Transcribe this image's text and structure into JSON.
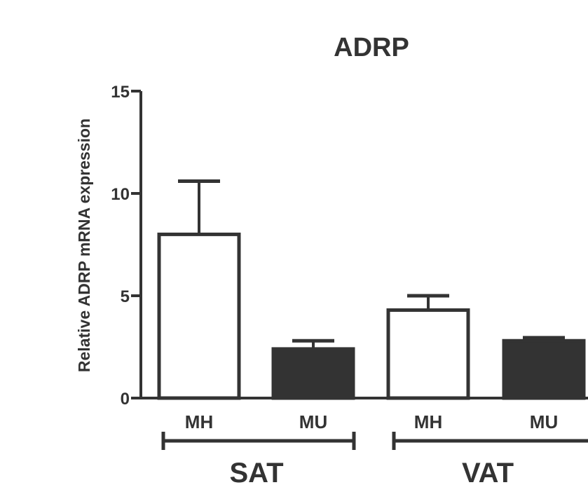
{
  "chart_data": {
    "type": "bar",
    "title": "ADRP",
    "ylabel": "Relative ADRP mRNA expression",
    "xlabel": "",
    "ylim": [
      0,
      15
    ],
    "yticks": [
      "0",
      "5",
      "10",
      "15"
    ],
    "bars": [
      {
        "category": "MH",
        "group": "SAT",
        "value": 8.0,
        "error": 2.6,
        "fill": "white"
      },
      {
        "category": "MU",
        "group": "SAT",
        "value": 2.4,
        "error": 0.4,
        "fill": "dark"
      },
      {
        "category": "MH",
        "group": "VAT",
        "value": 4.3,
        "error": 0.7,
        "fill": "white"
      },
      {
        "category": "MU",
        "group": "VAT",
        "value": 2.8,
        "error": 0.15,
        "fill": "dark"
      }
    ],
    "groups": [
      "SAT",
      "VAT"
    ],
    "grid": false
  },
  "colors": {
    "ink": "#333333",
    "bar_dark": "#333333",
    "bar_light": "#ffffff"
  }
}
